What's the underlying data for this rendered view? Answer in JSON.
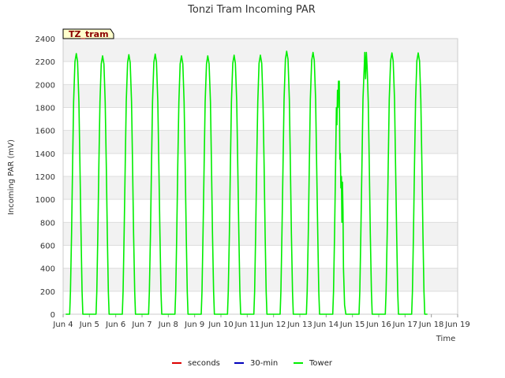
{
  "chart_data": {
    "type": "line",
    "title": "Tonzi Tram Incoming PAR",
    "xlabel": "Time",
    "ylabel": "Incoming PAR (mV)",
    "ylim": [
      0,
      2400
    ],
    "xlim": [
      4,
      19
    ],
    "y_ticks": [
      0,
      200,
      400,
      600,
      800,
      1000,
      1200,
      1400,
      1600,
      1800,
      2000,
      2200,
      2400
    ],
    "y_tick_labels": [
      "0",
      "200",
      "400",
      "600",
      "800",
      "1000",
      "1200",
      "1400",
      "1600",
      "1800",
      "2000",
      "2200",
      "2400"
    ],
    "x_ticks": [
      4,
      5,
      6,
      7,
      8,
      9,
      10,
      11,
      12,
      13,
      14,
      15,
      16,
      17,
      18,
      19
    ],
    "x_tick_labels": [
      "Jun 4",
      "Jun 5",
      "Jun 6",
      "Jun 7",
      "Jun 8",
      "Jun 9",
      "Jun 10",
      "Jun 11",
      "Jun 12",
      "Jun 13",
      "Jun 14",
      "Jun 15",
      "Jun 16",
      "Jun 17",
      "Jun 18",
      "Jun 19"
    ],
    "legend_position": "bottom-center",
    "annotation": "TZ_tram",
    "series": [
      {
        "name": "seconds",
        "color": "#dd0000",
        "values": []
      },
      {
        "name": "30-min",
        "color": "#0000bb",
        "values": []
      },
      {
        "name": "Tower",
        "color": "#00ee00",
        "daily_peaks": [
          {
            "day": 4.5,
            "peak": 2270
          },
          {
            "day": 5.5,
            "peak": 2250
          },
          {
            "day": 6.5,
            "peak": 2260
          },
          {
            "day": 7.5,
            "peak": 2265
          },
          {
            "day": 8.5,
            "peak": 2250
          },
          {
            "day": 9.5,
            "peak": 2250
          },
          {
            "day": 10.5,
            "peak": 2255
          },
          {
            "day": 11.5,
            "peak": 2255
          },
          {
            "day": 12.5,
            "peak": 2290
          },
          {
            "day": 13.5,
            "peak": 2280
          },
          {
            "day": 14.5,
            "peak": 2030
          },
          {
            "day": 15.5,
            "peak": 2280
          },
          {
            "day": 16.5,
            "peak": 2275
          },
          {
            "day": 17.5,
            "peak": 2275
          }
        ],
        "points": [
          [
            4.1,
            0
          ],
          [
            4.25,
            0
          ],
          [
            4.28,
            200
          ],
          [
            4.32,
            700
          ],
          [
            4.36,
            1300
          ],
          [
            4.4,
            1850
          ],
          [
            4.45,
            2200
          ],
          [
            4.5,
            2270
          ],
          [
            4.55,
            2200
          ],
          [
            4.6,
            1850
          ],
          [
            4.64,
            1300
          ],
          [
            4.68,
            700
          ],
          [
            4.72,
            200
          ],
          [
            4.75,
            0
          ],
          [
            5.25,
            0
          ],
          [
            5.28,
            200
          ],
          [
            5.32,
            700
          ],
          [
            5.36,
            1300
          ],
          [
            5.4,
            1850
          ],
          [
            5.45,
            2180
          ],
          [
            5.5,
            2250
          ],
          [
            5.55,
            2180
          ],
          [
            5.6,
            1850
          ],
          [
            5.64,
            1300
          ],
          [
            5.68,
            700
          ],
          [
            5.72,
            200
          ],
          [
            5.75,
            0
          ],
          [
            6.25,
            0
          ],
          [
            6.28,
            200
          ],
          [
            6.32,
            700
          ],
          [
            6.36,
            1300
          ],
          [
            6.4,
            1850
          ],
          [
            6.45,
            2190
          ],
          [
            6.5,
            2260
          ],
          [
            6.55,
            2190
          ],
          [
            6.6,
            1850
          ],
          [
            6.64,
            1300
          ],
          [
            6.68,
            700
          ],
          [
            6.72,
            200
          ],
          [
            6.75,
            0
          ],
          [
            7.25,
            0
          ],
          [
            7.28,
            200
          ],
          [
            7.32,
            700
          ],
          [
            7.36,
            1300
          ],
          [
            7.4,
            1850
          ],
          [
            7.45,
            2195
          ],
          [
            7.5,
            2265
          ],
          [
            7.55,
            2195
          ],
          [
            7.6,
            1850
          ],
          [
            7.64,
            1300
          ],
          [
            7.68,
            700
          ],
          [
            7.72,
            200
          ],
          [
            7.75,
            0
          ],
          [
            8.25,
            0
          ],
          [
            8.28,
            200
          ],
          [
            8.32,
            700
          ],
          [
            8.36,
            1300
          ],
          [
            8.4,
            1850
          ],
          [
            8.45,
            2180
          ],
          [
            8.5,
            2250
          ],
          [
            8.55,
            2180
          ],
          [
            8.6,
            1850
          ],
          [
            8.64,
            1300
          ],
          [
            8.68,
            700
          ],
          [
            8.72,
            200
          ],
          [
            8.75,
            0
          ],
          [
            9.25,
            0
          ],
          [
            9.28,
            200
          ],
          [
            9.32,
            700
          ],
          [
            9.36,
            1300
          ],
          [
            9.4,
            1850
          ],
          [
            9.45,
            2180
          ],
          [
            9.5,
            2250
          ],
          [
            9.55,
            2180
          ],
          [
            9.6,
            1850
          ],
          [
            9.64,
            1300
          ],
          [
            9.68,
            700
          ],
          [
            9.72,
            200
          ],
          [
            9.75,
            0
          ],
          [
            10.25,
            0
          ],
          [
            10.28,
            200
          ],
          [
            10.32,
            700
          ],
          [
            10.36,
            1300
          ],
          [
            10.4,
            1850
          ],
          [
            10.45,
            2185
          ],
          [
            10.5,
            2255
          ],
          [
            10.55,
            2185
          ],
          [
            10.6,
            1850
          ],
          [
            10.64,
            1300
          ],
          [
            10.68,
            700
          ],
          [
            10.72,
            200
          ],
          [
            10.75,
            0
          ],
          [
            11.25,
            0
          ],
          [
            11.28,
            200
          ],
          [
            11.32,
            700
          ],
          [
            11.36,
            1300
          ],
          [
            11.4,
            1850
          ],
          [
            11.45,
            2185
          ],
          [
            11.5,
            2255
          ],
          [
            11.55,
            2185
          ],
          [
            11.6,
            1850
          ],
          [
            11.64,
            1300
          ],
          [
            11.68,
            700
          ],
          [
            11.72,
            200
          ],
          [
            11.75,
            0
          ],
          [
            12.25,
            0
          ],
          [
            12.28,
            200
          ],
          [
            12.32,
            700
          ],
          [
            12.36,
            1300
          ],
          [
            12.4,
            1870
          ],
          [
            12.45,
            2220
          ],
          [
            12.5,
            2290
          ],
          [
            12.55,
            2220
          ],
          [
            12.6,
            1870
          ],
          [
            12.64,
            1300
          ],
          [
            12.68,
            700
          ],
          [
            12.72,
            200
          ],
          [
            12.75,
            0
          ],
          [
            13.25,
            0
          ],
          [
            13.28,
            200
          ],
          [
            13.32,
            700
          ],
          [
            13.36,
            1300
          ],
          [
            13.4,
            1870
          ],
          [
            13.45,
            2210
          ],
          [
            13.5,
            2280
          ],
          [
            13.55,
            2210
          ],
          [
            13.6,
            1870
          ],
          [
            13.64,
            1300
          ],
          [
            13.68,
            700
          ],
          [
            13.72,
            200
          ],
          [
            13.75,
            0
          ],
          [
            14.25,
            0
          ],
          [
            14.28,
            200
          ],
          [
            14.32,
            700
          ],
          [
            14.36,
            1300
          ],
          [
            14.39,
            1800
          ],
          [
            14.41,
            1650
          ],
          [
            14.43,
            1950
          ],
          [
            14.45,
            1800
          ],
          [
            14.47,
            2030
          ],
          [
            14.49,
            1980
          ],
          [
            14.5,
            2030
          ],
          [
            14.52,
            1350
          ],
          [
            14.54,
            1400
          ],
          [
            14.56,
            1100
          ],
          [
            14.58,
            1200
          ],
          [
            14.6,
            800
          ],
          [
            14.62,
            1150
          ],
          [
            14.64,
            900
          ],
          [
            14.66,
            400
          ],
          [
            14.7,
            80
          ],
          [
            14.75,
            0
          ],
          [
            15.25,
            0
          ],
          [
            15.28,
            200
          ],
          [
            15.32,
            700
          ],
          [
            15.36,
            1300
          ],
          [
            15.4,
            1870
          ],
          [
            15.44,
            2100
          ],
          [
            15.47,
            2280
          ],
          [
            15.5,
            2050
          ],
          [
            15.53,
            2280
          ],
          [
            15.56,
            2150
          ],
          [
            15.6,
            1850
          ],
          [
            15.64,
            1300
          ],
          [
            15.68,
            700
          ],
          [
            15.72,
            200
          ],
          [
            15.75,
            0
          ],
          [
            16.25,
            0
          ],
          [
            16.28,
            200
          ],
          [
            16.32,
            700
          ],
          [
            16.36,
            1300
          ],
          [
            16.4,
            1870
          ],
          [
            16.45,
            2205
          ],
          [
            16.5,
            2275
          ],
          [
            16.55,
            2205
          ],
          [
            16.6,
            1870
          ],
          [
            16.64,
            1300
          ],
          [
            16.68,
            700
          ],
          [
            16.72,
            200
          ],
          [
            16.75,
            0
          ],
          [
            17.25,
            0
          ],
          [
            17.28,
            200
          ],
          [
            17.32,
            700
          ],
          [
            17.36,
            1300
          ],
          [
            17.4,
            1870
          ],
          [
            17.45,
            2205
          ],
          [
            17.5,
            2275
          ],
          [
            17.55,
            2205
          ],
          [
            17.6,
            1870
          ],
          [
            17.64,
            1300
          ],
          [
            17.68,
            700
          ],
          [
            17.72,
            200
          ],
          [
            17.75,
            0
          ],
          [
            17.85,
            0
          ]
        ]
      }
    ]
  }
}
